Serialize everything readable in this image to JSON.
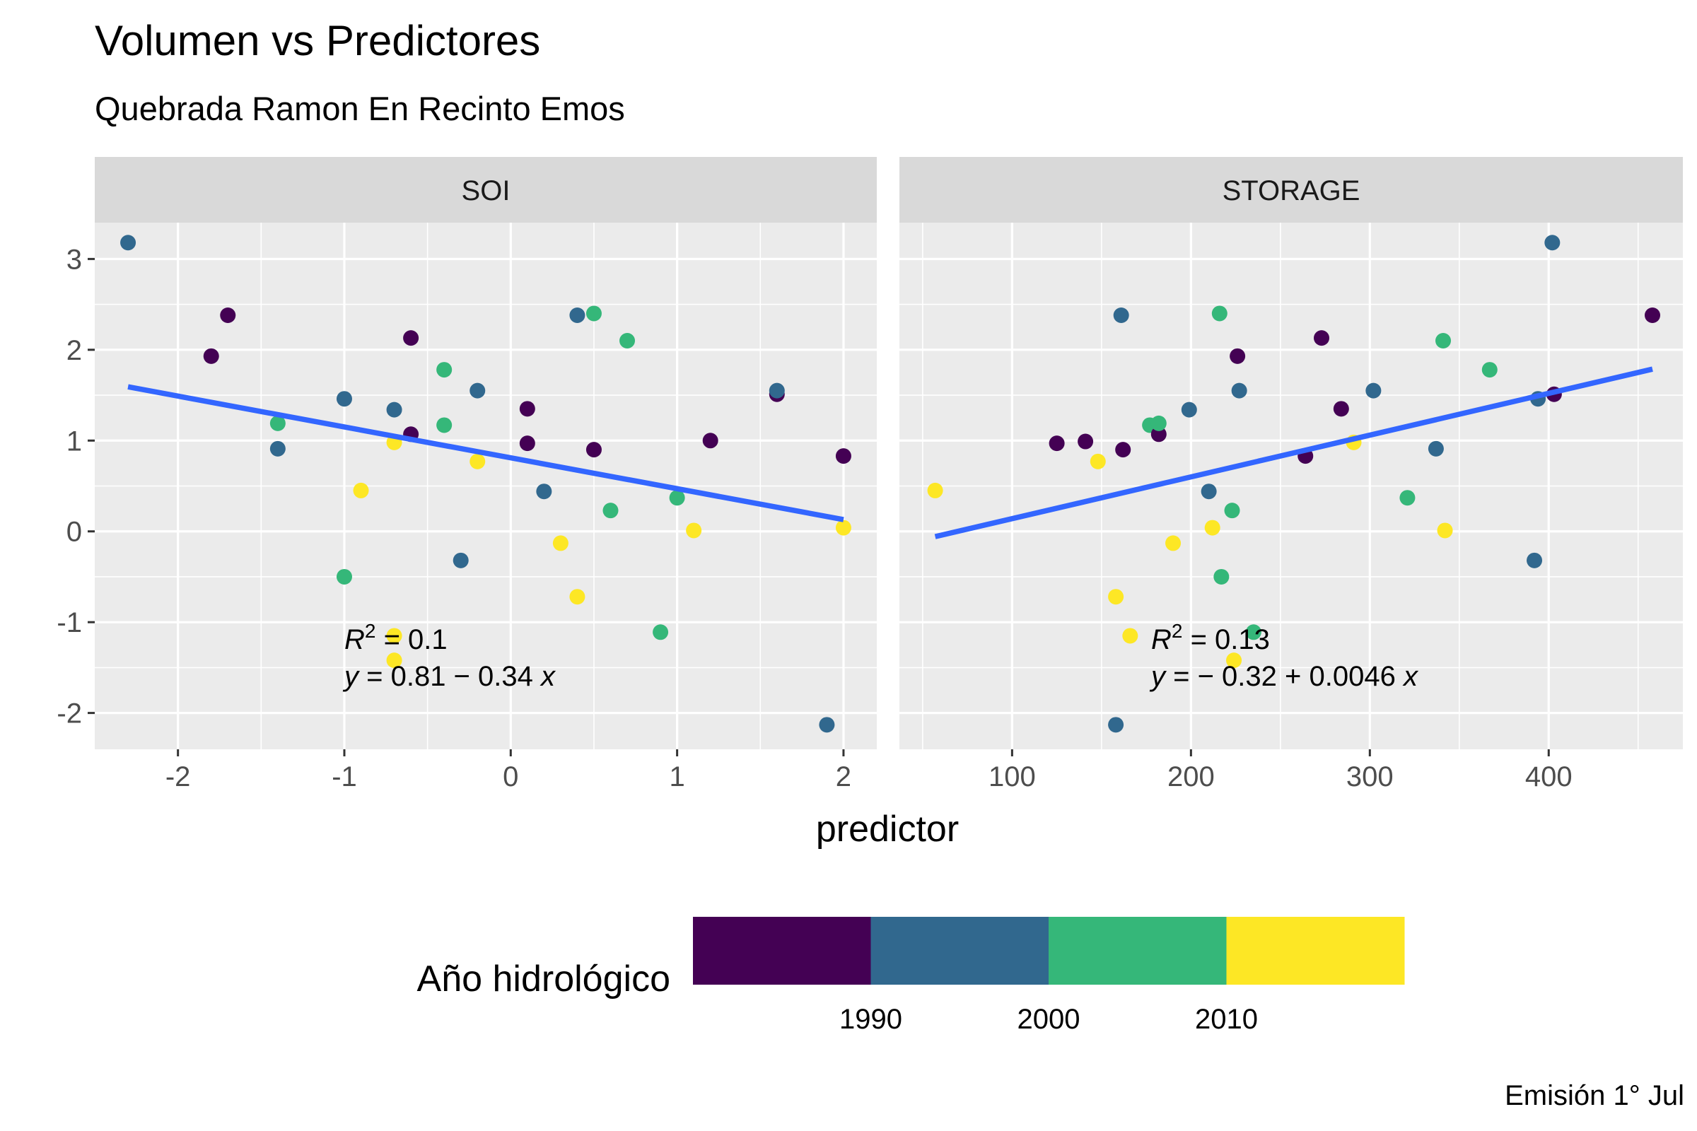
{
  "title": "Volumen vs Predictores",
  "subtitle": "Quebrada Ramon En Recinto Emos",
  "caption": "Emisión 1° Jul",
  "colors": {
    "panel_bg": "#EBEBEB",
    "strip_bg": "#D9D9D9",
    "grid": "#FFFFFF",
    "fit_line": "#3366FF",
    "c_1980s": "#440154",
    "c_1990s": "#31688E",
    "c_2000s": "#35B779",
    "c_2010s": "#FDE725"
  },
  "chart_data": {
    "type": "scatter",
    "x_title": "predictor",
    "y_title": "",
    "ylim": [
      -2.4,
      3.4
    ],
    "y_ticks": [
      3,
      2,
      1,
      0,
      -1,
      -2
    ],
    "y_tick_labels": [
      "3",
      "2",
      "1",
      "0",
      "-1",
      "-2"
    ],
    "grid": true,
    "legend": {
      "title": "Año hidrológico",
      "position": "bottom",
      "labels": [
        "1990",
        "2000",
        "2010"
      ],
      "bins": [
        "c_1980s",
        "c_1990s",
        "c_2000s",
        "c_2010s"
      ]
    },
    "facets": [
      {
        "name": "SOI",
        "xlim": [
          -2.5,
          2.2
        ],
        "x_ticks": [
          -2,
          -1,
          0,
          1,
          2
        ],
        "x_tick_labels": [
          "-2",
          "-1",
          "0",
          "1",
          "2"
        ],
        "r2_label": "0.1",
        "eq_label": "0.81 − 0.34",
        "fit": {
          "intercept": 0.81,
          "slope": -0.34,
          "x_range": [
            -2.3,
            2.0
          ]
        },
        "points": [
          {
            "x": -2.3,
            "y": 3.18,
            "c": "c_1990s"
          },
          {
            "x": -1.8,
            "y": 1.93,
            "c": "c_1980s"
          },
          {
            "x": -1.7,
            "y": 2.38,
            "c": "c_1980s"
          },
          {
            "x": -1.4,
            "y": 1.19,
            "c": "c_2000s"
          },
          {
            "x": -1.4,
            "y": 0.91,
            "c": "c_1990s"
          },
          {
            "x": -1.0,
            "y": 1.46,
            "c": "c_1990s"
          },
          {
            "x": -1.0,
            "y": -0.5,
            "c": "c_2000s"
          },
          {
            "x": -0.9,
            "y": 0.45,
            "c": "c_2010s"
          },
          {
            "x": -0.7,
            "y": 1.34,
            "c": "c_1990s"
          },
          {
            "x": -0.7,
            "y": 0.98,
            "c": "c_2010s"
          },
          {
            "x": -0.7,
            "y": -1.15,
            "c": "c_2010s"
          },
          {
            "x": -0.7,
            "y": -1.42,
            "c": "c_2010s"
          },
          {
            "x": -0.6,
            "y": 2.13,
            "c": "c_1980s"
          },
          {
            "x": -0.6,
            "y": 1.07,
            "c": "c_1980s"
          },
          {
            "x": -0.4,
            "y": 1.78,
            "c": "c_2000s"
          },
          {
            "x": -0.4,
            "y": 1.17,
            "c": "c_2000s"
          },
          {
            "x": -0.3,
            "y": -0.32,
            "c": "c_1990s"
          },
          {
            "x": -0.2,
            "y": 1.55,
            "c": "c_1990s"
          },
          {
            "x": -0.2,
            "y": 0.77,
            "c": "c_2010s"
          },
          {
            "x": 0.1,
            "y": 1.35,
            "c": "c_1980s"
          },
          {
            "x": 0.1,
            "y": 0.97,
            "c": "c_1980s"
          },
          {
            "x": 0.2,
            "y": 0.44,
            "c": "c_1990s"
          },
          {
            "x": 0.3,
            "y": -0.13,
            "c": "c_2010s"
          },
          {
            "x": 0.4,
            "y": 2.38,
            "c": "c_1990s"
          },
          {
            "x": 0.4,
            "y": -0.72,
            "c": "c_2010s"
          },
          {
            "x": 0.5,
            "y": 2.4,
            "c": "c_2000s"
          },
          {
            "x": 0.5,
            "y": 0.9,
            "c": "c_1980s"
          },
          {
            "x": 0.6,
            "y": 0.23,
            "c": "c_2000s"
          },
          {
            "x": 0.7,
            "y": 2.1,
            "c": "c_2000s"
          },
          {
            "x": 0.9,
            "y": -1.11,
            "c": "c_2000s"
          },
          {
            "x": 1.0,
            "y": 0.37,
            "c": "c_2000s"
          },
          {
            "x": 1.1,
            "y": 0.01,
            "c": "c_2010s"
          },
          {
            "x": 1.2,
            "y": 1.0,
            "c": "c_1980s"
          },
          {
            "x": 1.6,
            "y": 1.51,
            "c": "c_1980s"
          },
          {
            "x": 1.6,
            "y": 1.55,
            "c": "c_1990s"
          },
          {
            "x": 1.9,
            "y": -2.13,
            "c": "c_1990s"
          },
          {
            "x": 2.0,
            "y": 0.83,
            "c": "c_1980s"
          },
          {
            "x": 2.0,
            "y": 0.04,
            "c": "c_2010s"
          }
        ]
      },
      {
        "name": "STORAGE",
        "xlim": [
          37,
          475
        ],
        "x_ticks": [
          100,
          200,
          300,
          400
        ],
        "x_tick_labels": [
          "100",
          "200",
          "300",
          "400"
        ],
        "r2_label": "0.13",
        "eq_label": "− 0.32 + 0.0046",
        "fit": {
          "intercept": -0.32,
          "slope": 0.0046,
          "x_range": [
            57,
            458
          ]
        },
        "points": [
          {
            "x": 57,
            "y": 0.45,
            "c": "c_2010s"
          },
          {
            "x": 125,
            "y": 0.97,
            "c": "c_1980s"
          },
          {
            "x": 141,
            "y": 0.99,
            "c": "c_1980s"
          },
          {
            "x": 148,
            "y": 0.77,
            "c": "c_2010s"
          },
          {
            "x": 158,
            "y": -0.72,
            "c": "c_2010s"
          },
          {
            "x": 158,
            "y": -2.13,
            "c": "c_1990s"
          },
          {
            "x": 161,
            "y": 2.38,
            "c": "c_1990s"
          },
          {
            "x": 162,
            "y": 0.9,
            "c": "c_1980s"
          },
          {
            "x": 166,
            "y": -1.15,
            "c": "c_2010s"
          },
          {
            "x": 177,
            "y": 1.17,
            "c": "c_2000s"
          },
          {
            "x": 182,
            "y": 1.07,
            "c": "c_1980s"
          },
          {
            "x": 182,
            "y": 1.19,
            "c": "c_2000s"
          },
          {
            "x": 190,
            "y": -0.13,
            "c": "c_2010s"
          },
          {
            "x": 199,
            "y": 1.34,
            "c": "c_1990s"
          },
          {
            "x": 210,
            "y": 0.44,
            "c": "c_1990s"
          },
          {
            "x": 212,
            "y": 0.04,
            "c": "c_2010s"
          },
          {
            "x": 216,
            "y": 2.4,
            "c": "c_2000s"
          },
          {
            "x": 217,
            "y": -0.5,
            "c": "c_2000s"
          },
          {
            "x": 223,
            "y": 0.23,
            "c": "c_2000s"
          },
          {
            "x": 224,
            "y": -1.42,
            "c": "c_2010s"
          },
          {
            "x": 226,
            "y": 1.93,
            "c": "c_1980s"
          },
          {
            "x": 227,
            "y": 1.55,
            "c": "c_1990s"
          },
          {
            "x": 235,
            "y": -1.11,
            "c": "c_2000s"
          },
          {
            "x": 264,
            "y": 0.83,
            "c": "c_1980s"
          },
          {
            "x": 273,
            "y": 2.13,
            "c": "c_1980s"
          },
          {
            "x": 284,
            "y": 1.35,
            "c": "c_1980s"
          },
          {
            "x": 291,
            "y": 0.98,
            "c": "c_2010s"
          },
          {
            "x": 302,
            "y": 1.55,
            "c": "c_1990s"
          },
          {
            "x": 321,
            "y": 0.37,
            "c": "c_2000s"
          },
          {
            "x": 337,
            "y": 0.91,
            "c": "c_1990s"
          },
          {
            "x": 341,
            "y": 2.1,
            "c": "c_2000s"
          },
          {
            "x": 342,
            "y": 0.01,
            "c": "c_2010s"
          },
          {
            "x": 367,
            "y": 1.78,
            "c": "c_2000s"
          },
          {
            "x": 392,
            "y": -0.32,
            "c": "c_1990s"
          },
          {
            "x": 394,
            "y": 1.46,
            "c": "c_1990s"
          },
          {
            "x": 402,
            "y": 3.18,
            "c": "c_1990s"
          },
          {
            "x": 403,
            "y": 1.51,
            "c": "c_1980s"
          },
          {
            "x": 458,
            "y": 2.38,
            "c": "c_1980s"
          }
        ]
      }
    ]
  }
}
